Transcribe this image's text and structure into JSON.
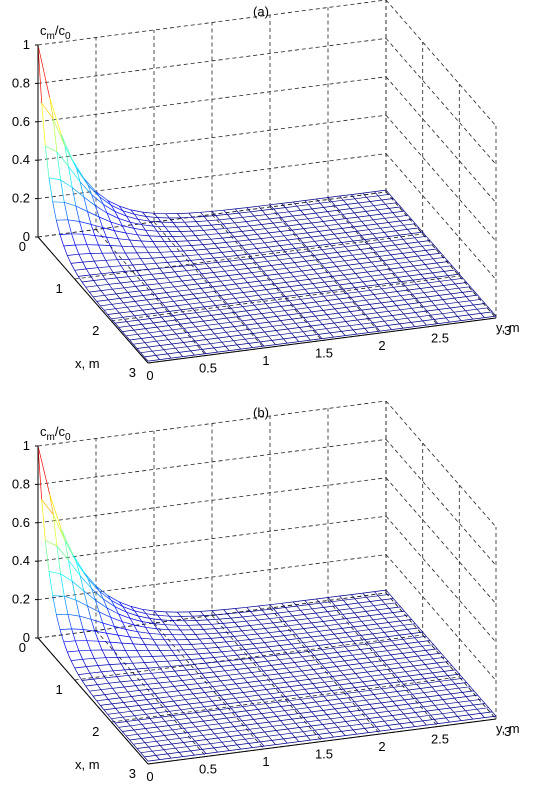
{
  "chart_data": [
    {
      "type": "surface",
      "title": "(a)",
      "xlabel": "x, m",
      "ylabel": "y, m",
      "zlabel": {
        "main": "c",
        "sub1": "m",
        "mid": "/c",
        "sub2": "0"
      },
      "xlim": [
        0,
        3
      ],
      "ylim": [
        0,
        3
      ],
      "zlim": [
        0,
        1
      ],
      "x_ticks": [
        "0",
        "1",
        "2",
        "3"
      ],
      "y_ticks": [
        "0",
        "0.5",
        "1",
        "1.5",
        "2",
        "2.5",
        "3"
      ],
      "z_ticks": [
        "0",
        "0.2",
        "0.4",
        "0.6",
        "0.8",
        "1"
      ],
      "grid": true,
      "colormap": "jet",
      "mesh_points_per_axis": 31,
      "surface": {
        "peak_value": 1.0,
        "peak_at": [
          0,
          0
        ],
        "decay_length_m": 0.3,
        "far_field_value": 0.01
      }
    },
    {
      "type": "surface",
      "title": "(b)",
      "xlabel": "x, m",
      "ylabel": "y, m",
      "zlabel": {
        "main": "c",
        "sub1": "m",
        "mid": "/c",
        "sub2": "0"
      },
      "xlim": [
        0,
        3
      ],
      "ylim": [
        0,
        3
      ],
      "zlim": [
        0,
        1
      ],
      "x_ticks": [
        "0",
        "1",
        "2",
        "3"
      ],
      "y_ticks": [
        "0",
        "0.5",
        "1",
        "1.5",
        "2",
        "2.5",
        "3"
      ],
      "z_ticks": [
        "0",
        "0.2",
        "0.4",
        "0.6",
        "0.8",
        "1"
      ],
      "grid": true,
      "colormap": "jet",
      "mesh_points_per_axis": 31,
      "surface": {
        "peak_value": 1.0,
        "peak_at": [
          0,
          0
        ],
        "decay_length_m": 0.33,
        "far_field_value": 0.015
      }
    }
  ]
}
